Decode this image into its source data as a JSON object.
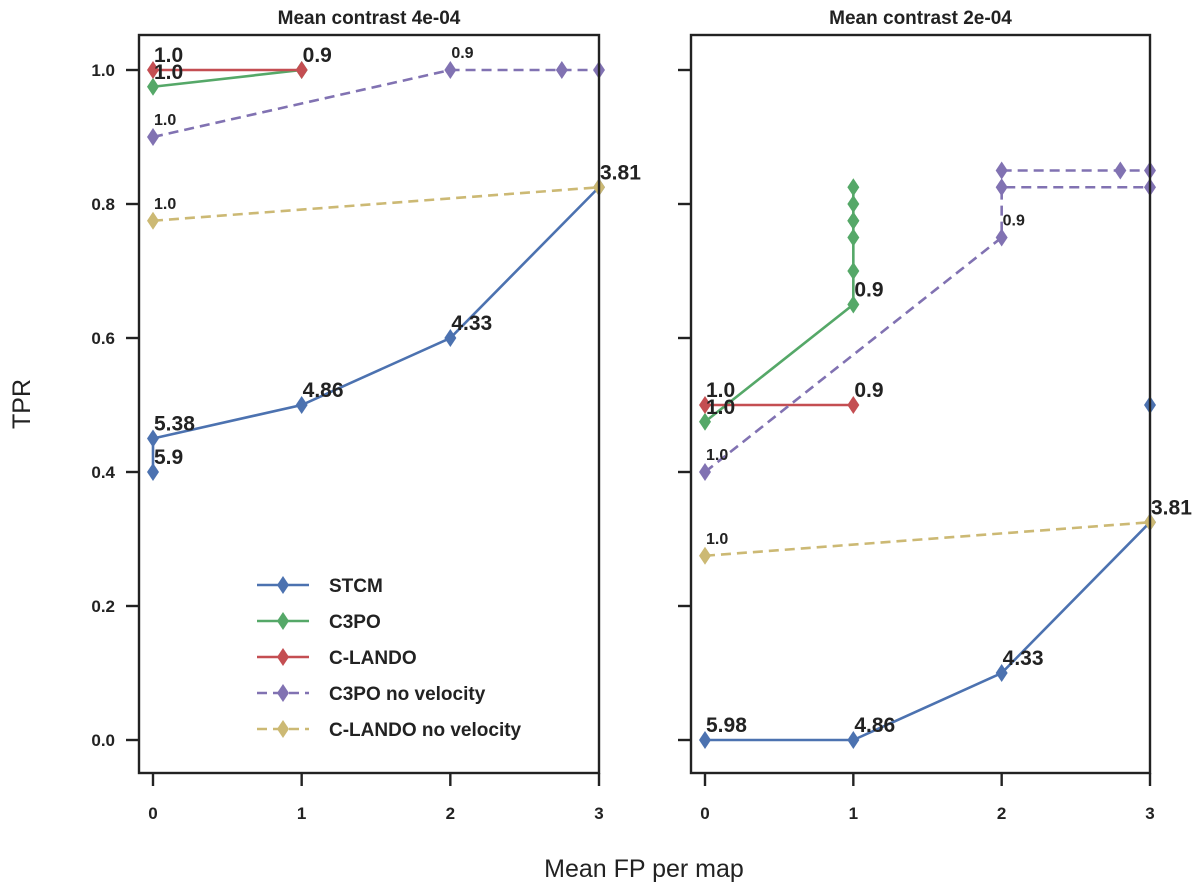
{
  "chart_data": {
    "type": "line",
    "xlabel": "Mean FP per map",
    "ylabel": "TPR",
    "legend": {
      "placement": "lower-center of left panel",
      "entries": [
        {
          "name": "STCM",
          "color": "#4c72b0",
          "dashed": false
        },
        {
          "name": "C3PO",
          "color": "#55a868",
          "dashed": false
        },
        {
          "name": "C-LANDO",
          "color": "#c44e52",
          "dashed": false
        },
        {
          "name": "C3PO no velocity",
          "color": "#8172b2",
          "dashed": true
        },
        {
          "name": "C-LANDO no velocity",
          "color": "#ccb974",
          "dashed": true
        }
      ]
    },
    "panels": [
      {
        "title": "Mean contrast 4e-04",
        "xlim": [
          -0.1,
          3
        ],
        "ylim": [
          -0.05,
          1.05
        ],
        "xticks": [
          "0",
          "1",
          "2",
          "3"
        ],
        "yticks": [
          "0.0",
          "0.2",
          "0.4",
          "0.6",
          "0.8",
          "1.0"
        ],
        "grid": false,
        "series": [
          {
            "name": "STCM",
            "x": [
              0,
              0,
              1,
              2,
              3
            ],
            "y": [
              0.4,
              0.45,
              0.5,
              0.6,
              0.825
            ]
          },
          {
            "name": "C3PO",
            "x": [
              0,
              1
            ],
            "y": [
              0.975,
              1.0
            ]
          },
          {
            "name": "C-LANDO",
            "x": [
              0,
              1
            ],
            "y": [
              1.0,
              1.0
            ]
          },
          {
            "name": "C3PO no velocity",
            "x": [
              0,
              2,
              2.75,
              3
            ],
            "y": [
              0.9,
              1.0,
              1.0,
              1.0
            ]
          },
          {
            "name": "C-LANDO no velocity",
            "x": [
              0,
              3
            ],
            "y": [
              0.775,
              0.825
            ]
          }
        ],
        "annotations": [
          {
            "text": "5.9",
            "x": 0,
            "y": 0.4,
            "size": "big"
          },
          {
            "text": "5.38",
            "x": 0,
            "y": 0.45,
            "size": "big"
          },
          {
            "text": "4.86",
            "x": 1,
            "y": 0.5,
            "size": "big"
          },
          {
            "text": "4.33",
            "x": 2,
            "y": 0.6,
            "size": "big"
          },
          {
            "text": "3.81",
            "x": 3,
            "y": 0.825,
            "size": "big"
          },
          {
            "text": "1.0",
            "x": 0,
            "y": 1.0,
            "size": "big"
          },
          {
            "text": "1.0",
            "x": 0,
            "y": 0.975,
            "size": "big"
          },
          {
            "text": "0.9",
            "x": 1,
            "y": 1.0,
            "size": "big"
          },
          {
            "text": "1.0",
            "x": 0,
            "y": 0.9,
            "size": "small"
          },
          {
            "text": "0.9",
            "x": 2,
            "y": 1.0,
            "size": "small"
          },
          {
            "text": "1.0",
            "x": 0,
            "y": 0.775,
            "size": "small"
          }
        ]
      },
      {
        "title": "Mean contrast 2e-04",
        "xlim": [
          -0.1,
          3
        ],
        "ylim": [
          -0.05,
          1.05
        ],
        "xticks": [
          "0",
          "1",
          "2",
          "3"
        ],
        "yticks": [],
        "grid": false,
        "series": [
          {
            "name": "STCM",
            "x": [
              0,
              1,
              2,
              3
            ],
            "y": [
              0.0,
              0.0,
              0.1,
              0.325
            ],
            "extra_points": [
              {
                "x": 3,
                "y": 0.5
              }
            ]
          },
          {
            "name": "C3PO",
            "x": [
              0,
              1,
              1,
              1,
              1,
              1,
              1,
              1
            ],
            "y": [
              0.475,
              0.65,
              0.7,
              0.75,
              0.775,
              0.775,
              0.8,
              0.825
            ]
          },
          {
            "name": "C-LANDO",
            "x": [
              0,
              1
            ],
            "y": [
              0.5,
              0.5
            ]
          },
          {
            "name": "C3PO no velocity",
            "x": [
              0,
              2,
              2,
              3
            ],
            "y": [
              0.4,
              0.75,
              0.825,
              0.825
            ],
            "extra_lines": [
              {
                "x": [
                  2,
                  2.8,
                  3
                ],
                "y": [
                  0.85,
                  0.85,
                  0.85
                ]
              }
            ]
          },
          {
            "name": "C-LANDO no velocity",
            "x": [
              0,
              3
            ],
            "y": [
              0.275,
              0.325
            ]
          }
        ],
        "annotations": [
          {
            "text": "5.98",
            "x": 0,
            "y": 0.0,
            "size": "big"
          },
          {
            "text": "4.86",
            "x": 1,
            "y": 0.0,
            "size": "big"
          },
          {
            "text": "4.33",
            "x": 2,
            "y": 0.1,
            "size": "big"
          },
          {
            "text": "3.81",
            "x": 3,
            "y": 0.325,
            "size": "big"
          },
          {
            "text": "1.0",
            "x": 0,
            "y": 0.5,
            "size": "big"
          },
          {
            "text": "1.0",
            "x": 0,
            "y": 0.475,
            "size": "big"
          },
          {
            "text": "0.9",
            "x": 1,
            "y": 0.5,
            "size": "big"
          },
          {
            "text": "0.9",
            "x": 1,
            "y": 0.65,
            "size": "big"
          },
          {
            "text": "1.0",
            "x": 0,
            "y": 0.4,
            "size": "small"
          },
          {
            "text": "0.9",
            "x": 2,
            "y": 0.75,
            "size": "small"
          },
          {
            "text": "1.0",
            "x": 0,
            "y": 0.275,
            "size": "small"
          }
        ]
      }
    ]
  }
}
